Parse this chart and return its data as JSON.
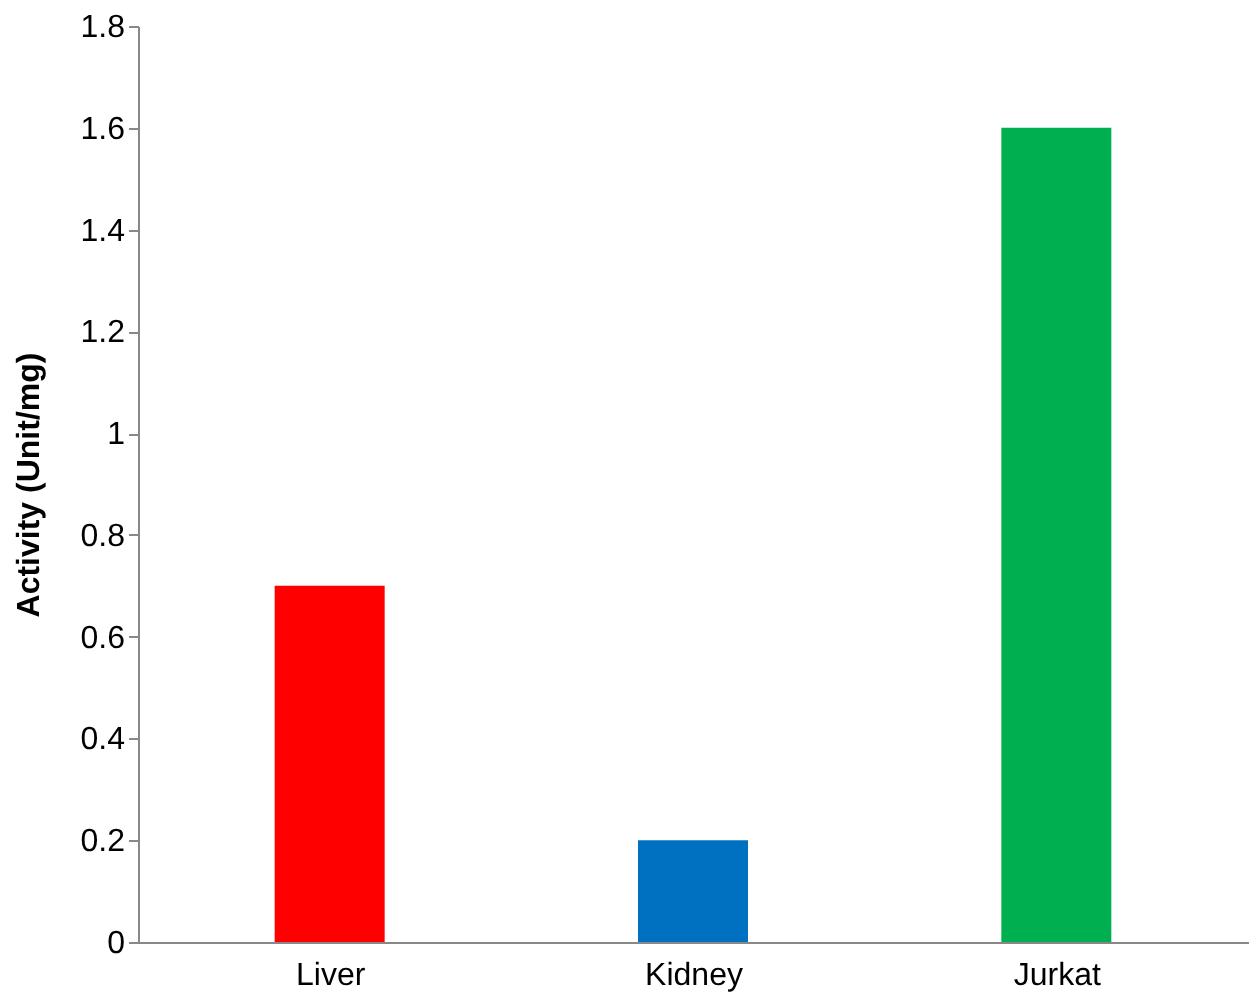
{
  "chart_data": {
    "type": "bar",
    "ylabel": "Activity (Unit/mg)",
    "categories": [
      "Liver",
      "Kidney",
      "Jurkat"
    ],
    "values": [
      0.7,
      0.2,
      1.6
    ],
    "colors": [
      "#ff0000",
      "#0070c0",
      "#00b050"
    ],
    "ylim": [
      0,
      1.8
    ],
    "yticks": [
      0,
      0.2,
      0.4,
      0.6,
      0.8,
      1,
      1.2,
      1.4,
      1.6,
      1.8
    ],
    "grid": false,
    "legend": false
  }
}
